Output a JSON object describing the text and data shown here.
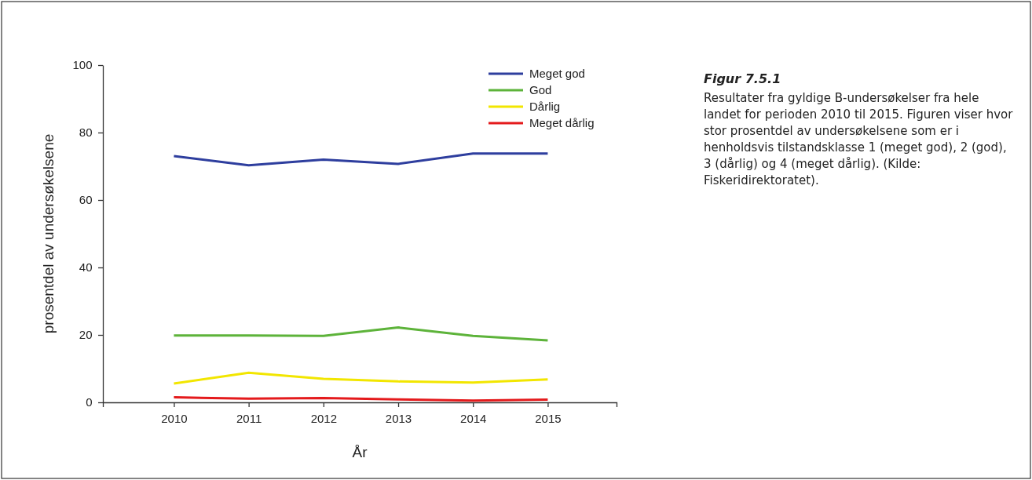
{
  "chart_data": {
    "type": "line",
    "title": "Figur 7.5.1",
    "subtitle": "Resultater fra gyldige B-undersøkelser fra hele landet for perioden 2010 til 2015. Figuren viser hvor stor prosentdel av undersøkelsene som er i henholdsvis tilstandsklasse 1 (meget god), 2 (god), 3 (dårlig) og 4 (meget dårlig). (Kilde: Fiskeridirektoratet).",
    "xlabel": "År",
    "ylabel": "prosentdel av undersøkelsene",
    "x": [
      2010,
      2011,
      2012,
      2013,
      2014,
      2015
    ],
    "series": [
      {
        "name": "Meget god",
        "color": "#2e3e9e",
        "values": [
          73,
          70.3,
          72,
          70.7,
          73.8,
          73.8
        ]
      },
      {
        "name": "God",
        "color": "#5db33a",
        "values": [
          19.8,
          19.8,
          19.7,
          22.2,
          19.7,
          18.4
        ]
      },
      {
        "name": "Dårlig",
        "color": "#f2e600",
        "values": [
          5.6,
          8.8,
          7,
          6.2,
          5.9,
          6.8
        ]
      },
      {
        "name": "Meget dårlig",
        "color": "#e41a1c",
        "values": [
          1.5,
          1.1,
          1.3,
          0.9,
          0.5,
          0.8
        ]
      }
    ],
    "xlim": [
      2009.05,
      2015.92
    ],
    "xticks": [
      2010,
      2011,
      2012,
      2013,
      2014,
      2015
    ],
    "ylim": [
      0,
      100
    ],
    "yticks": [
      0,
      20,
      40,
      60,
      80,
      100
    ],
    "grid": false,
    "legend": "top right",
    "marker": "none",
    "line_style": "solid"
  }
}
